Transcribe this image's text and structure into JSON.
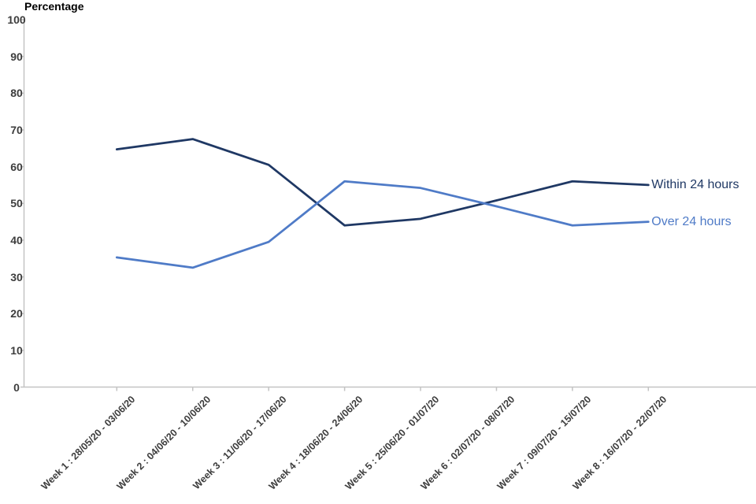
{
  "chart_data": {
    "type": "line",
    "title": "Percentage",
    "categories": [
      "Week 1 : 28/05/20 - 03/06/20",
      "Week 2 : 04/06/20 - 10/06/20",
      "Week 3 : 11/06/20 - 17/06/20",
      "Week 4 : 18/06/20 - 24/06/20",
      "Week 5 : 25/06/20 - 01/07/20",
      "Week 6 : 02/07/20 - 08/07/20",
      "Week 7 : 09/07/20 - 15/07/20",
      "Week 8 : 16/07/20 - 22/07/20"
    ],
    "series": [
      {
        "name": "Within 24 hours",
        "color": "#1F3864",
        "values": [
          64.7,
          67.5,
          60.5,
          44.0,
          45.8,
          50.8,
          56.0,
          55.0
        ]
      },
      {
        "name": "Over 24 hours",
        "color": "#4F7BC7",
        "values": [
          35.3,
          32.5,
          39.5,
          56.0,
          54.2,
          49.2,
          44.0,
          45.0
        ]
      }
    ],
    "xlabel": "",
    "ylabel": "Percentage",
    "ylim": [
      0,
      100
    ],
    "ytick_step": 10,
    "grid": false,
    "legend_position": "end-of-line",
    "axis_color": "#C3C3C3",
    "tick_label_color": "#3d3d3d"
  }
}
